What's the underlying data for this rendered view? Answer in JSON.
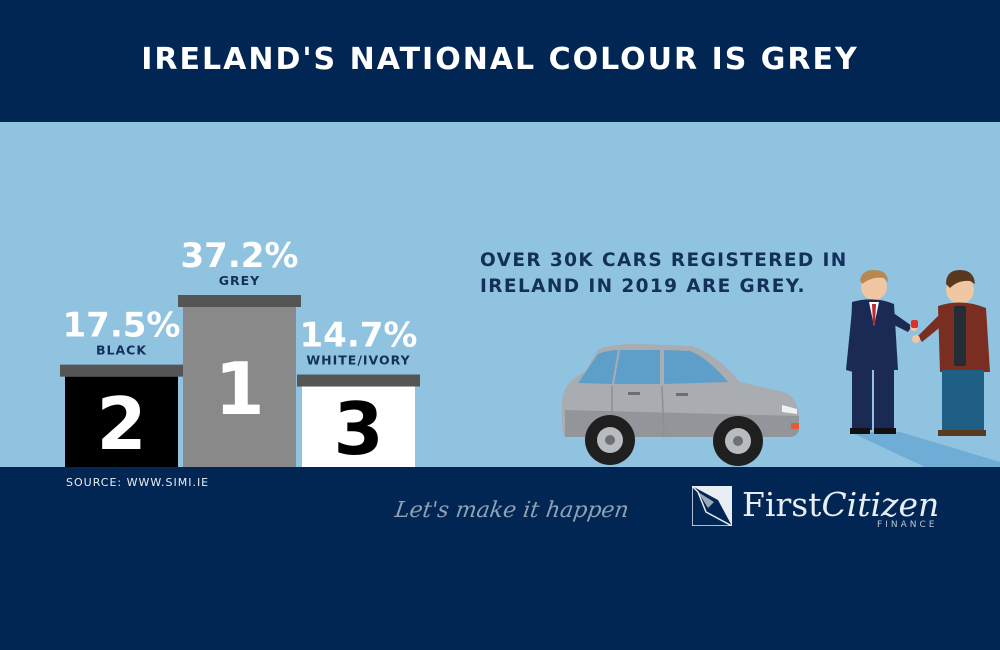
{
  "title": "IRELAND'S NATIONAL COLOUR IS GREY",
  "info_line1": "OVER 30K CARS REGISTERED IN",
  "info_line2": "IRELAND IN 2019 ARE GREY.",
  "source": "SOURCE: WWW.SIMI.IE",
  "tagline": "Let's make it happen",
  "brand": {
    "first": "First",
    "citizen": "Citizen",
    "finance": "FINANCE"
  },
  "colors": {
    "navy": "#022653",
    "band": "#8fc3e0",
    "black": "#000000",
    "grey": "#898989",
    "white": "#ffffff",
    "cap": "#555555"
  },
  "chart_data": {
    "type": "bar",
    "categories": [
      "BLACK",
      "GREY",
      "WHITE/IVORY"
    ],
    "values": [
      17.5,
      37.2,
      14.7
    ],
    "value_labels": [
      "17.5%",
      "37.2%",
      "14.7%"
    ],
    "ranks": [
      "2",
      "1",
      "3"
    ],
    "title": "",
    "xlabel": "",
    "ylabel": ""
  }
}
